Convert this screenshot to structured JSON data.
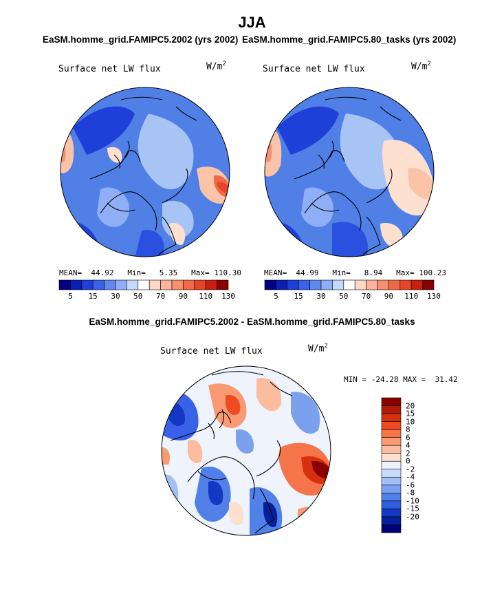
{
  "page": {
    "title": "JJA",
    "left_run": "EaSM.homme_grid.FAMIPC5.2002 (yrs 2002)",
    "right_run": "EaSM.homme_grid.FAMIPC5.80_tasks (yrs 2002)",
    "diff_title": "EaSM.homme_grid.FAMIPC5.2002 - EaSM.homme_grid.FAMIPC5.80_tasks"
  },
  "panels": [
    {
      "variable": "Surface net LW flux",
      "units_base": "W/m",
      "units_exp": "2",
      "mean_label": "MEAN=",
      "mean": "44.92",
      "min_label": "Min=",
      "min": "5.35",
      "max_label": "Max=",
      "max": "110.30"
    },
    {
      "variable": "Surface net LW flux",
      "units_base": "W/m",
      "units_exp": "2",
      "mean_label": "MEAN=",
      "mean": "44.99",
      "min_label": "Min=",
      "min": "8.94",
      "max_label": "Max=",
      "max": "100.23"
    }
  ],
  "diff_panel": {
    "variable": "Surface net LW flux",
    "units_base": "W/m",
    "units_exp": "2",
    "min_label": "MIN =",
    "min": "-24.28",
    "max_label": "MAX =",
    "max": "31.42"
  },
  "colorbar_horizontal": {
    "colors": [
      "#000080",
      "#0a1fb0",
      "#1e40d8",
      "#3a62e8",
      "#6088f0",
      "#90aef5",
      "#c4d8fb",
      "#ffffff",
      "#fdd8c4",
      "#fbb49a",
      "#f79070",
      "#f06a48",
      "#e44528",
      "#c82010",
      "#8b0000"
    ],
    "tick_labels": [
      "5",
      "15",
      "30",
      "50",
      "70",
      "90",
      "110",
      "130"
    ]
  },
  "colorbar_vertical": {
    "colors": [
      "#8b0000",
      "#b01a08",
      "#d6300c",
      "#ef4a22",
      "#f5744a",
      "#f99a75",
      "#fbbca0",
      "#fde0d0",
      "#eef3fc",
      "#c8dcf8",
      "#a2c0f4",
      "#7aa0ee",
      "#5080e8",
      "#2d5edc",
      "#1438c4",
      "#06209c",
      "#000078"
    ],
    "tick_labels": [
      "20",
      "15",
      "10",
      "8",
      "6",
      "4",
      "2",
      "0",
      "-2",
      "-4",
      "-6",
      "-8",
      "-10",
      "-15",
      "-20"
    ]
  }
}
